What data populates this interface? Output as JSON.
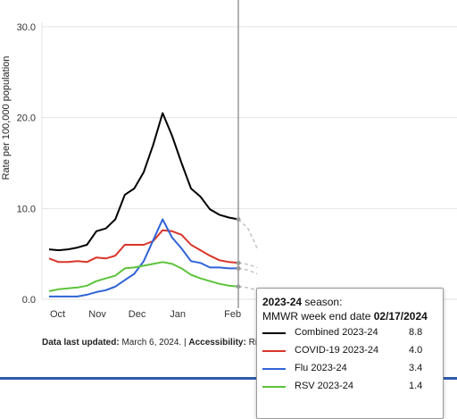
{
  "chart_data": {
    "type": "line",
    "ylabel": "Rate per 100,000 population",
    "ylim": [
      0,
      30
    ],
    "yticks": [
      "0.0",
      "10.0",
      "20.0",
      "30.0"
    ],
    "x_tick_labels": [
      "Oct",
      "Nov",
      "Dec",
      "Jan",
      "Feb"
    ],
    "x": [
      "2023-09-30",
      "2023-10-07",
      "2023-10-14",
      "2023-10-21",
      "2023-10-28",
      "2023-11-04",
      "2023-11-11",
      "2023-11-18",
      "2023-11-25",
      "2023-12-02",
      "2023-12-09",
      "2023-12-16",
      "2023-12-23",
      "2023-12-30",
      "2024-01-06",
      "2024-01-13",
      "2024-01-20",
      "2024-01-27",
      "2024-02-03",
      "2024-02-10",
      "2024-02-17"
    ],
    "series": [
      {
        "name": "Combined 2023-24",
        "color": "#000000",
        "values": [
          5.5,
          5.4,
          5.5,
          5.7,
          6.0,
          7.5,
          7.8,
          8.8,
          11.5,
          12.2,
          14.0,
          17.0,
          20.5,
          18.0,
          15.0,
          12.2,
          11.3,
          9.9,
          9.3,
          9.0,
          8.8
        ]
      },
      {
        "name": "COVID-19 2023-24",
        "color": "#d9362b",
        "values": [
          4.5,
          4.1,
          4.1,
          4.2,
          4.1,
          4.6,
          4.5,
          4.8,
          6.0,
          6.0,
          6.0,
          6.4,
          7.6,
          7.5,
          7.1,
          6.0,
          5.4,
          4.8,
          4.3,
          4.1,
          4.0
        ]
      },
      {
        "name": "Flu 2023-24",
        "color": "#2f63d6",
        "values": [
          0.3,
          0.3,
          0.3,
          0.3,
          0.5,
          0.8,
          1.0,
          1.4,
          2.1,
          2.8,
          4.2,
          6.5,
          8.8,
          6.8,
          5.6,
          4.2,
          4.0,
          3.5,
          3.5,
          3.4,
          3.4
        ]
      },
      {
        "name": "RSV 2023-24",
        "color": "#5cc43b",
        "values": [
          0.9,
          1.1,
          1.2,
          1.3,
          1.5,
          2.0,
          2.3,
          2.6,
          3.4,
          3.5,
          3.7,
          3.9,
          4.1,
          3.9,
          3.4,
          2.7,
          2.3,
          2.0,
          1.7,
          1.5,
          1.4
        ]
      }
    ],
    "grid": true,
    "hover_date": "2024-02-17"
  },
  "footer": {
    "updated_label": "Data last updated:",
    "updated_value": "March 6, 2024. |",
    "accessibility_label": "Accessibility:",
    "accessibility_value": "Righ"
  },
  "tooltip": {
    "season": "2023-24",
    "season_suffix": "season:",
    "week_label": "MMWR week end date",
    "week_date": "02/17/2024",
    "rows": [
      {
        "name": "Combined 2023-24",
        "value": "8.8",
        "color": "#000000"
      },
      {
        "name": "COVID-19 2023-24",
        "value": "4.0",
        "color": "#d9362b"
      },
      {
        "name": "Flu 2023-24",
        "value": "3.4",
        "color": "#2f63d6"
      },
      {
        "name": "RSV 2023-24",
        "value": "1.4",
        "color": "#5cc43b"
      }
    ]
  }
}
